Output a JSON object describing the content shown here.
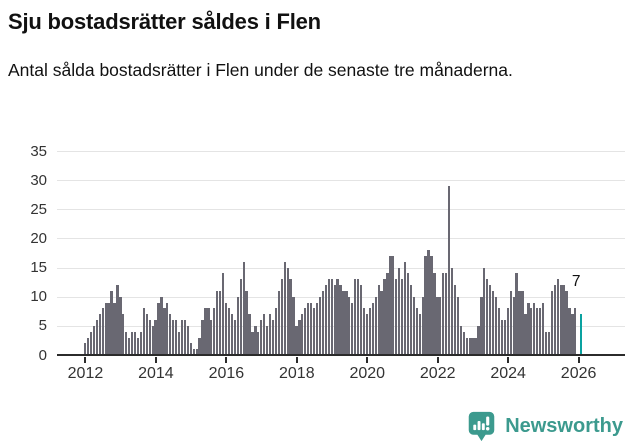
{
  "title": "Sju bostadsrätter såldes i Flen",
  "subtitle": "Antal sålda bostadsrätter i Flen under de senaste tre månaderna.",
  "chart_data": {
    "type": "bar",
    "title": "Sju bostadsrätter såldes i Flen",
    "xlabel": "",
    "ylabel": "",
    "ylim": [
      0,
      35
    ],
    "y_ticks": [
      0,
      5,
      10,
      15,
      20,
      25,
      30,
      35
    ],
    "grid": true,
    "x_start": "2012-01",
    "x_frequency": "monthly",
    "x_tick_labels": [
      "2012",
      "2014",
      "2016",
      "2018",
      "2020",
      "2022",
      "2024",
      "2026"
    ],
    "x_tick_indices": [
      0,
      24,
      48,
      72,
      96,
      120,
      144,
      168
    ],
    "values": [
      2,
      3,
      4,
      5,
      6,
      7,
      8,
      9,
      9,
      11,
      9,
      12,
      10,
      7,
      4,
      3,
      4,
      4,
      3,
      4,
      8,
      7,
      6,
      5,
      6,
      9,
      10,
      8,
      9,
      7,
      6,
      6,
      4,
      6,
      6,
      5,
      2,
      1,
      1,
      3,
      6,
      8,
      8,
      6,
      8,
      11,
      11,
      14,
      9,
      8,
      7,
      6,
      10,
      13,
      16,
      11,
      7,
      4,
      5,
      4,
      6,
      7,
      5,
      7,
      6,
      8,
      11,
      13,
      16,
      15,
      13,
      10,
      5,
      6,
      7,
      8,
      9,
      9,
      8,
      9,
      10,
      11,
      12,
      13,
      13,
      12,
      13,
      12,
      11,
      11,
      10,
      9,
      13,
      13,
      12,
      8,
      7,
      8,
      9,
      10,
      12,
      11,
      13,
      14,
      17,
      17,
      13,
      15,
      13,
      16,
      14,
      12,
      10,
      8,
      7,
      10,
      17,
      18,
      17,
      14,
      10,
      10,
      14,
      14,
      29,
      15,
      12,
      10,
      5,
      4,
      3,
      3,
      3,
      3,
      5,
      10,
      15,
      13,
      12,
      11,
      10,
      8,
      6,
      6,
      8,
      11,
      10,
      14,
      11,
      11,
      7,
      9,
      8,
      9,
      8,
      8,
      9,
      4,
      4,
      11,
      12,
      13,
      12,
      12,
      11,
      8,
      7,
      8,
      null,
      7
    ],
    "highlight_index": 169,
    "highlight_value": 7,
    "highlight_label": "7",
    "bar_color": "#696872",
    "highlight_color": "#0aa2a0",
    "grid_color": "#e4e4e4",
    "axis_color": "#2b2b2b"
  },
  "footer": {
    "brand": "Newsworthy",
    "brand_color": "#3c9a8e",
    "icon": "bar-chart-speech-bubble-icon"
  }
}
